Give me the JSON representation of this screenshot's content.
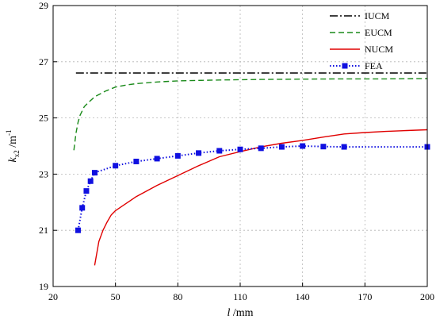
{
  "chart_data": {
    "type": "line",
    "xlabel_symbol": "l",
    "xlabel_unit": " /mm",
    "ylabel_main": "k",
    "ylabel_sub": "x2",
    "ylabel_unit": " /m",
    "ylabel_sup": "-1",
    "xlim": [
      20,
      200
    ],
    "ylim": [
      19,
      29
    ],
    "xticks": [
      20,
      50,
      80,
      110,
      140,
      170,
      200
    ],
    "yticks": [
      19,
      21,
      23,
      25,
      27,
      29
    ],
    "grid": true,
    "legend_position": "top-right",
    "series": [
      {
        "name": "IUCM",
        "style": "dash-dot",
        "color": "#000000",
        "x": [
          31,
          200
        ],
        "y": [
          26.6,
          26.6
        ]
      },
      {
        "name": "EUCM",
        "style": "dashed",
        "color": "#1a8a1a",
        "x": [
          30,
          31,
          32,
          33,
          35,
          37,
          40,
          45,
          50,
          55,
          60,
          70,
          80,
          100,
          120,
          140,
          160,
          180,
          200
        ],
        "y": [
          23.85,
          24.45,
          24.85,
          25.1,
          25.4,
          25.55,
          25.75,
          25.95,
          26.1,
          26.17,
          26.22,
          26.28,
          26.32,
          26.35,
          26.37,
          26.38,
          26.39,
          26.39,
          26.4
        ]
      },
      {
        "name": "NUCM",
        "style": "solid",
        "color": "#e00000",
        "x": [
          40,
          42,
          44,
          46,
          48,
          50,
          55,
          60,
          70,
          80,
          90,
          100,
          110,
          120,
          130,
          140,
          150,
          160,
          170,
          180,
          190,
          200
        ],
        "y": [
          19.75,
          20.6,
          21.0,
          21.3,
          21.55,
          21.7,
          21.95,
          22.2,
          22.6,
          22.95,
          23.3,
          23.62,
          23.8,
          23.97,
          24.1,
          24.2,
          24.32,
          24.43,
          24.48,
          24.52,
          24.55,
          24.58
        ]
      },
      {
        "name": "FEA",
        "style": "dotted-squares",
        "color": "#1010e0",
        "x": [
          32,
          34,
          36,
          38,
          40,
          50,
          60,
          70,
          80,
          90,
          100,
          110,
          120,
          130,
          140,
          150,
          160,
          200
        ],
        "y": [
          21.0,
          21.8,
          22.4,
          22.75,
          23.05,
          23.3,
          23.45,
          23.55,
          23.65,
          23.75,
          23.83,
          23.88,
          23.92,
          23.97,
          24.0,
          23.98,
          23.97,
          23.97
        ]
      }
    ]
  }
}
